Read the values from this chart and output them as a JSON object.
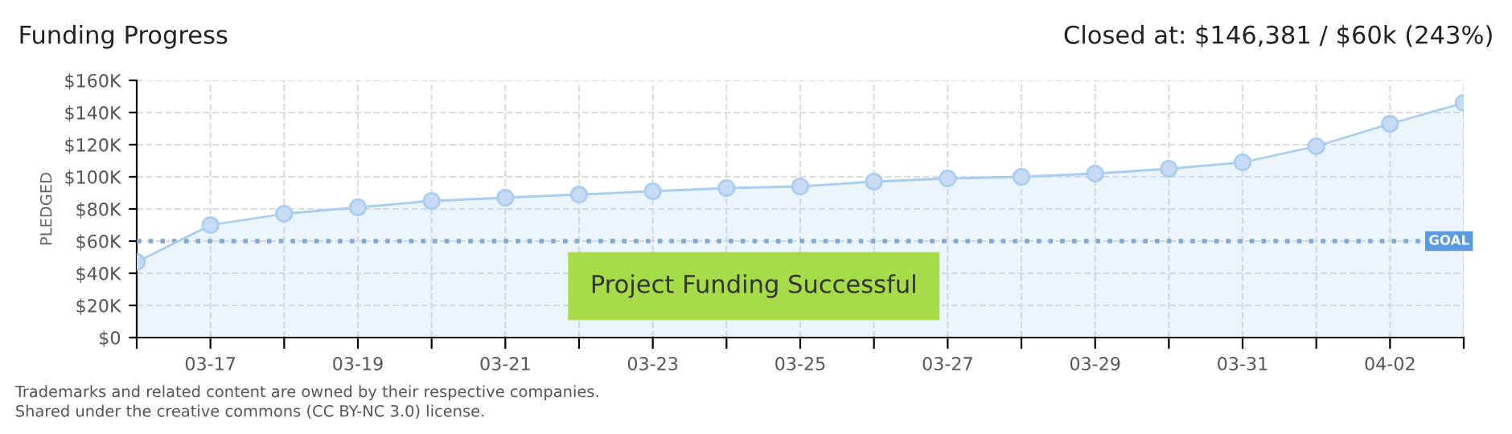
{
  "chart_data": {
    "type": "area",
    "title": "Funding Progress",
    "subtitle": "Closed at: $146,381 / $60k (243%)",
    "ylabel": "PLEDGED",
    "categories": [
      null,
      "03-17",
      null,
      "03-19",
      null,
      "03-21",
      null,
      "03-23",
      null,
      "03-25",
      null,
      "03-27",
      null,
      "03-29",
      null,
      "03-31",
      null,
      "04-02",
      null
    ],
    "series": [
      {
        "color": "#a9cdf2",
        "values": [
          47,
          70,
          77,
          81,
          85,
          87,
          89,
          91,
          93,
          94,
          97,
          99,
          100,
          102,
          105,
          109,
          119,
          133,
          146
        ]
      }
    ],
    "ylim": [
      0,
      160
    ],
    "yticks": [
      {
        "value": 0,
        "label": "$0"
      },
      {
        "value": 20,
        "label": "$20K"
      },
      {
        "value": 40,
        "label": "$40K"
      },
      {
        "value": 60,
        "label": "$60K"
      },
      {
        "value": 80,
        "label": "$80K"
      },
      {
        "value": 100,
        "label": "$100K"
      },
      {
        "value": 120,
        "label": "$120K"
      },
      {
        "value": 140,
        "label": "$140K"
      },
      {
        "value": 160,
        "label": "$160K"
      }
    ],
    "ref_lines": [
      {
        "axis": "y",
        "value": 60,
        "label": "GOAL",
        "color": "#7fa8d6",
        "line_style": "dotted"
      }
    ],
    "annotations": [
      "Project Funding Successful",
      "Trademarks and related content are owned by their respective companies.",
      "Shared under the creative commons (CC BY-NC 3.0) license."
    ],
    "grid": true,
    "marker": "circle"
  }
}
